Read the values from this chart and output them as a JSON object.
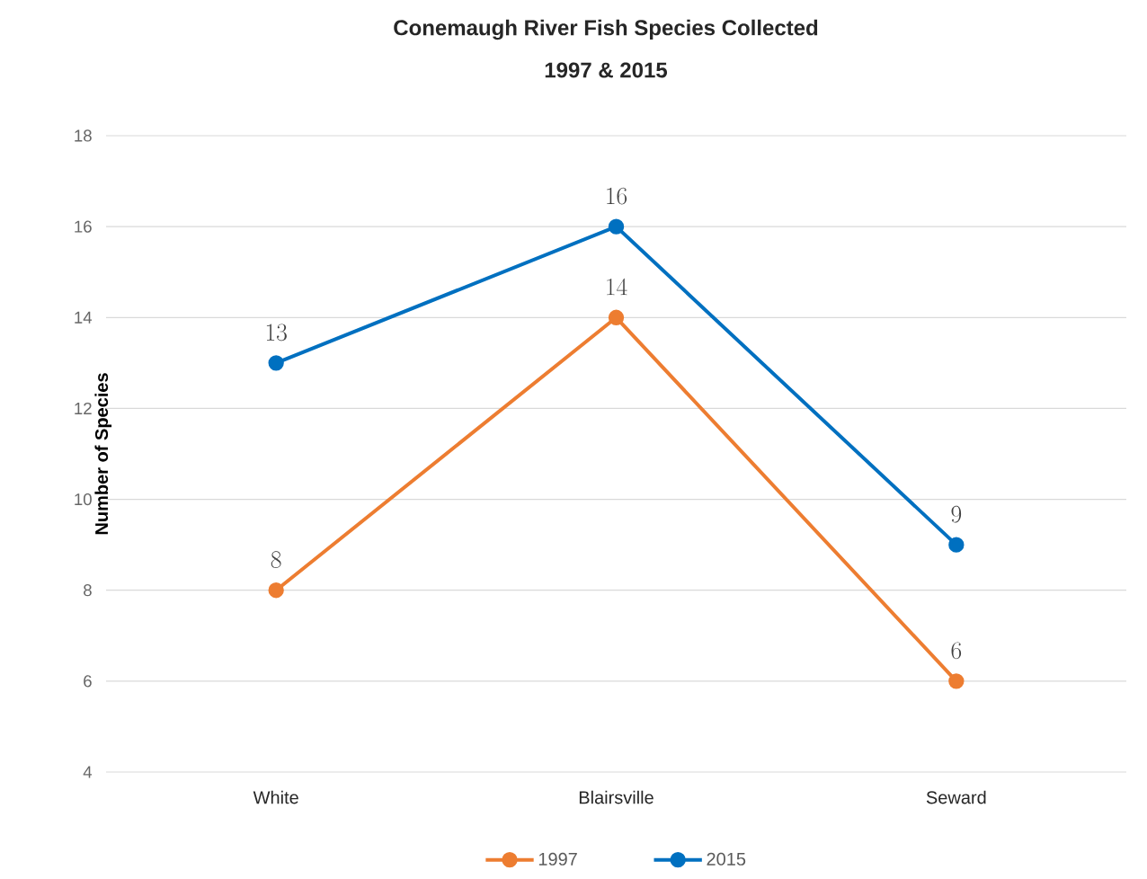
{
  "chart_data": {
    "type": "line",
    "title": "Conemaugh River Fish Species Collected",
    "subtitle": "1997 & 2015",
    "ylabel": "Number of Species",
    "categories": [
      "White",
      "Blairsville",
      "Seward"
    ],
    "series": [
      {
        "name": "1997",
        "color": "#ed7d31",
        "values": [
          8,
          14,
          6
        ]
      },
      {
        "name": "2015",
        "color": "#0070c0",
        "values": [
          13,
          16,
          9
        ]
      }
    ],
    "ylim": [
      4,
      18
    ],
    "yticks": [
      4,
      6,
      8,
      10,
      12,
      14,
      16,
      18
    ],
    "grid": "y",
    "legend": "bottom",
    "marker": "circle",
    "line_style": "solid",
    "data_labels": true
  }
}
